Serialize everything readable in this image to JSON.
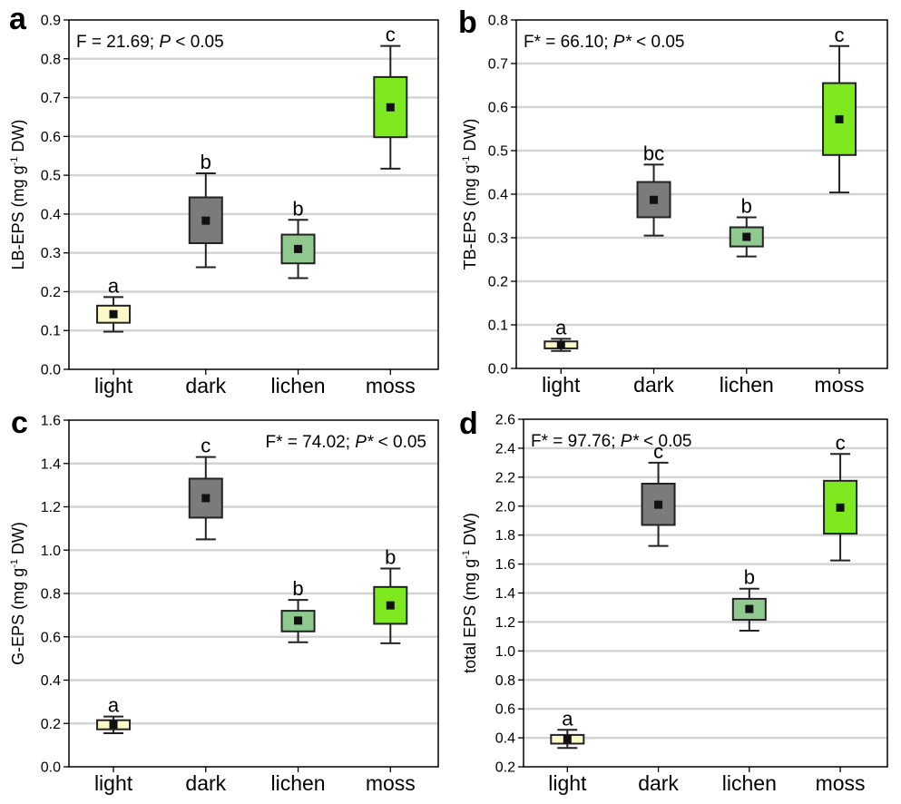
{
  "chart_data": [
    {
      "panel": "a",
      "type": "box",
      "categories": [
        "light",
        "dark",
        "lichen",
        "moss"
      ],
      "colors": [
        "#fcf9c9",
        "#7b7b7b",
        "#8fc990",
        "#7fe91f"
      ],
      "ylabel_main": "LB-EPS (mg g",
      "ylabel_sup": "-1",
      "ylabel_tail": " DW)",
      "ylim": [
        0,
        0.9
      ],
      "yticks": [
        0.0,
        0.1,
        0.2,
        0.3,
        0.4,
        0.5,
        0.6,
        0.7,
        0.8,
        0.9
      ],
      "tick_decimals": 1,
      "grid": true,
      "stat": {
        "prefix": "F = 21.69; ",
        "p": "P",
        "suffix": " < 0.05",
        "position": "top-left"
      },
      "boxes": [
        {
          "whisker_low": 0.097,
          "q1": 0.12,
          "mean": 0.142,
          "q3": 0.164,
          "whisker_high": 0.186,
          "letter": "a"
        },
        {
          "whisker_low": 0.263,
          "q1": 0.325,
          "mean": 0.383,
          "q3": 0.443,
          "whisker_high": 0.505,
          "letter": "b"
        },
        {
          "whisker_low": 0.235,
          "q1": 0.273,
          "mean": 0.31,
          "q3": 0.347,
          "whisker_high": 0.385,
          "letter": "b"
        },
        {
          "whisker_low": 0.517,
          "q1": 0.598,
          "mean": 0.675,
          "q3": 0.753,
          "whisker_high": 0.833,
          "letter": "c"
        }
      ]
    },
    {
      "panel": "b",
      "type": "box",
      "categories": [
        "light",
        "dark",
        "lichen",
        "moss"
      ],
      "colors": [
        "#fcf9c9",
        "#7b7b7b",
        "#8fc990",
        "#7fe91f"
      ],
      "ylabel_main": "TB-EPS (mg g",
      "ylabel_sup": "-1",
      "ylabel_tail": " DW)",
      "ylim": [
        0,
        0.8
      ],
      "yticks": [
        0.0,
        0.1,
        0.2,
        0.3,
        0.4,
        0.5,
        0.6,
        0.7,
        0.8
      ],
      "tick_decimals": 1,
      "grid": true,
      "stat": {
        "prefix": "F* = 66.10; ",
        "p": "P*",
        "suffix": " < 0.05",
        "position": "top-left"
      },
      "boxes": [
        {
          "whisker_low": 0.04,
          "q1": 0.046,
          "mean": 0.054,
          "q3": 0.062,
          "whisker_high": 0.068,
          "letter": "a"
        },
        {
          "whisker_low": 0.305,
          "q1": 0.347,
          "mean": 0.387,
          "q3": 0.428,
          "whisker_high": 0.468,
          "letter": "bc"
        },
        {
          "whisker_low": 0.257,
          "q1": 0.28,
          "mean": 0.302,
          "q3": 0.324,
          "whisker_high": 0.347,
          "letter": "b"
        },
        {
          "whisker_low": 0.404,
          "q1": 0.49,
          "mean": 0.572,
          "q3": 0.655,
          "whisker_high": 0.74,
          "letter": "c"
        }
      ]
    },
    {
      "panel": "c",
      "type": "box",
      "categories": [
        "light",
        "dark",
        "lichen",
        "moss"
      ],
      "colors": [
        "#fcf9c9",
        "#7b7b7b",
        "#8fc990",
        "#7fe91f"
      ],
      "ylabel_main": "G-EPS (mg g",
      "ylabel_sup": "-1",
      "ylabel_tail": " DW)",
      "ylim": [
        0,
        1.6
      ],
      "yticks": [
        0.0,
        0.2,
        0.4,
        0.6,
        0.8,
        1.0,
        1.2,
        1.4,
        1.6
      ],
      "tick_decimals": 1,
      "grid": true,
      "stat": {
        "prefix": "F* = 74.02; ",
        "p": "P*",
        "suffix": " < 0.05",
        "position": "top-right"
      },
      "boxes": [
        {
          "whisker_low": 0.155,
          "q1": 0.173,
          "mean": 0.195,
          "q3": 0.215,
          "whisker_high": 0.232,
          "letter": "a"
        },
        {
          "whisker_low": 1.05,
          "q1": 1.15,
          "mean": 1.24,
          "q3": 1.33,
          "whisker_high": 1.43,
          "letter": "c"
        },
        {
          "whisker_low": 0.575,
          "q1": 0.625,
          "mean": 0.675,
          "q3": 0.72,
          "whisker_high": 0.77,
          "letter": "b"
        },
        {
          "whisker_low": 0.57,
          "q1": 0.66,
          "mean": 0.745,
          "q3": 0.83,
          "whisker_high": 0.915,
          "letter": "b"
        }
      ]
    },
    {
      "panel": "d",
      "type": "box",
      "categories": [
        "light",
        "dark",
        "lichen",
        "moss"
      ],
      "colors": [
        "#fcf9c9",
        "#7b7b7b",
        "#8fc990",
        "#7fe91f"
      ],
      "ylabel_main": "total EPS (mg g",
      "ylabel_sup": "-1",
      "ylabel_tail": " DW)",
      "ylim": [
        0.2,
        2.6
      ],
      "yticks": [
        0.2,
        0.4,
        0.6,
        0.8,
        1.0,
        1.2,
        1.4,
        1.6,
        1.8,
        2.0,
        2.2,
        2.4,
        2.6
      ],
      "tick_decimals": 1,
      "grid": true,
      "stat": {
        "prefix": "F* = 97.76; ",
        "p": "P*",
        "suffix": " < 0.05",
        "position": "top-left"
      },
      "boxes": [
        {
          "whisker_low": 0.33,
          "q1": 0.36,
          "mean": 0.39,
          "q3": 0.42,
          "whisker_high": 0.455,
          "letter": "a"
        },
        {
          "whisker_low": 1.725,
          "q1": 1.87,
          "mean": 2.01,
          "q3": 2.155,
          "whisker_high": 2.3,
          "letter": "c"
        },
        {
          "whisker_low": 1.14,
          "q1": 1.215,
          "mean": 1.29,
          "q3": 1.36,
          "whisker_high": 1.43,
          "letter": "b"
        },
        {
          "whisker_low": 1.625,
          "q1": 1.81,
          "mean": 1.99,
          "q3": 2.175,
          "whisker_high": 2.36,
          "letter": "c"
        }
      ]
    }
  ]
}
